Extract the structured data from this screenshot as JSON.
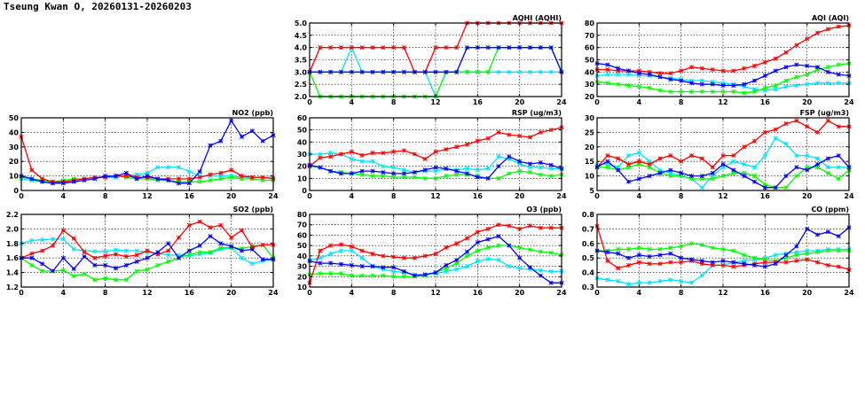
{
  "title": "Tseung Kwan O, 20260131-20260203",
  "series_colors": [
    "#ff0000",
    "#0000ff",
    "#00ff00",
    "#00e5ff"
  ],
  "chart_data": [
    {
      "id": "aqhi",
      "type": "line",
      "title": "AQHI (AQHI)",
      "xlim": [
        0,
        24
      ],
      "xticks": [
        0,
        4,
        8,
        12,
        16,
        20,
        24
      ],
      "ylim": [
        2,
        5
      ],
      "yticks": [
        "2.0",
        "2.5",
        "3.0",
        "3.5",
        "4.0",
        "4.5",
        "5.0"
      ],
      "grid": true,
      "series": [
        {
          "color": "#00e5ff",
          "values": [
            3,
            3,
            3,
            3,
            4,
            3,
            3,
            3,
            3,
            3,
            3,
            3,
            2,
            3,
            3,
            3,
            3,
            3,
            3,
            3,
            3,
            3,
            3,
            3,
            3
          ]
        },
        {
          "color": "#00ff00",
          "values": [
            3,
            2,
            2,
            2,
            2,
            2,
            2,
            2,
            2,
            2,
            2,
            2,
            2,
            3,
            3,
            3,
            3,
            3,
            4,
            4,
            4,
            4,
            4,
            4,
            3
          ]
        },
        {
          "color": "#ff0000",
          "values": [
            3,
            4,
            4,
            4,
            4,
            4,
            4,
            4,
            4,
            4,
            3,
            3,
            4,
            4,
            4,
            5,
            5,
            5,
            5,
            5,
            5,
            5,
            5,
            5,
            5
          ]
        },
        {
          "color": "#0000ff",
          "values": [
            3,
            3,
            3,
            3,
            3,
            3,
            3,
            3,
            3,
            3,
            3,
            3,
            3,
            3,
            3,
            4,
            4,
            4,
            4,
            4,
            4,
            4,
            4,
            4,
            3
          ]
        }
      ]
    },
    {
      "id": "aqi",
      "type": "line",
      "title": "AQI (AQI)",
      "xlim": [
        0,
        24
      ],
      "xticks": [
        0,
        4,
        8,
        12,
        16,
        20,
        24
      ],
      "ylim": [
        20,
        80
      ],
      "yticks": [
        "20",
        "30",
        "40",
        "50",
        "60",
        "70",
        "80"
      ],
      "grid": true,
      "series": [
        {
          "color": "#00e5ff",
          "values": [
            37,
            38,
            38,
            38,
            37,
            37,
            36,
            35,
            34,
            33,
            33,
            32,
            31,
            30,
            28,
            26,
            25,
            26,
            28,
            29,
            30,
            31,
            31,
            31,
            31
          ]
        },
        {
          "color": "#00ff00",
          "values": [
            32,
            31,
            30,
            29,
            28,
            27,
            25,
            24,
            24,
            24,
            24,
            24,
            24,
            24,
            23,
            24,
            27,
            29,
            33,
            36,
            38,
            42,
            44,
            46,
            47
          ]
        },
        {
          "color": "#ff0000",
          "values": [
            42,
            42,
            41,
            41,
            41,
            40,
            39,
            39,
            41,
            44,
            43,
            42,
            41,
            41,
            43,
            45,
            48,
            51,
            56,
            62,
            67,
            72,
            75,
            77,
            78
          ]
        },
        {
          "color": "#0000ff",
          "values": [
            47,
            46,
            43,
            41,
            39,
            38,
            36,
            34,
            33,
            31,
            30,
            30,
            29,
            29,
            30,
            33,
            37,
            41,
            44,
            46,
            45,
            44,
            40,
            38,
            37
          ]
        }
      ]
    },
    {
      "id": "no2",
      "type": "line",
      "title": "NO2 (ppb)",
      "xlim": [
        0,
        24
      ],
      "xticks": [
        0,
        4,
        8,
        12,
        16,
        20,
        24
      ],
      "ylim": [
        0,
        50
      ],
      "yticks": [
        "0",
        "10",
        "20",
        "30",
        "40",
        "50"
      ],
      "grid": true,
      "series": [
        {
          "color": "#00e5ff",
          "values": [
            8,
            7,
            6,
            5,
            6,
            7,
            8,
            9,
            9,
            9,
            10,
            11,
            12,
            16,
            16,
            16,
            13,
            10,
            10,
            10,
            10,
            9,
            9,
            9,
            9
          ]
        },
        {
          "color": "#00ff00",
          "values": [
            9,
            8,
            7,
            6,
            7,
            8,
            8,
            9,
            9,
            10,
            9,
            8,
            8,
            7,
            7,
            6,
            6,
            6,
            7,
            8,
            9,
            8,
            8,
            7,
            7
          ]
        },
        {
          "color": "#ff0000",
          "values": [
            37,
            14,
            8,
            6,
            6,
            7,
            8,
            9,
            9,
            10,
            10,
            9,
            9,
            8,
            8,
            8,
            8,
            9,
            11,
            12,
            14,
            10,
            9,
            9,
            8
          ]
        },
        {
          "color": "#0000ff",
          "values": [
            10,
            8,
            6,
            5,
            5,
            6,
            7,
            8,
            10,
            10,
            12,
            8,
            10,
            8,
            7,
            5,
            5,
            13,
            31,
            34,
            48,
            37,
            41,
            34,
            38
          ]
        }
      ]
    },
    {
      "id": "rsp",
      "type": "line",
      "title": "RSP (ug/m3)",
      "xlim": [
        0,
        24
      ],
      "xticks": [
        0,
        4,
        8,
        12,
        16,
        20,
        24
      ],
      "ylim": [
        0,
        60
      ],
      "yticks": [
        "0",
        "10",
        "20",
        "30",
        "40",
        "50",
        "60"
      ],
      "grid": true,
      "series": [
        {
          "color": "#00e5ff",
          "values": [
            30,
            30,
            31,
            30,
            26,
            24,
            24,
            20,
            19,
            17,
            15,
            16,
            16,
            18,
            17,
            18,
            17,
            18,
            28,
            26,
            22,
            19,
            19,
            18,
            18
          ]
        },
        {
          "color": "#00ff00",
          "values": [
            20,
            19,
            16,
            15,
            14,
            13,
            12,
            12,
            11,
            11,
            11,
            10,
            10,
            12,
            13,
            13,
            12,
            10,
            10,
            14,
            16,
            15,
            13,
            12,
            13
          ]
        },
        {
          "color": "#ff0000",
          "values": [
            20,
            27,
            28,
            30,
            32,
            29,
            31,
            31,
            32,
            33,
            30,
            26,
            32,
            34,
            36,
            38,
            41,
            43,
            48,
            46,
            45,
            44,
            48,
            50,
            52
          ]
        },
        {
          "color": "#0000ff",
          "values": [
            21,
            19,
            16,
            14,
            14,
            16,
            16,
            15,
            14,
            14,
            15,
            17,
            19,
            18,
            16,
            14,
            11,
            10,
            20,
            28,
            24,
            22,
            23,
            21,
            18
          ]
        }
      ]
    },
    {
      "id": "fsp",
      "type": "line",
      "title": "FSP (ug/m3)",
      "xlim": [
        0,
        24
      ],
      "xticks": [
        0,
        4,
        8,
        12,
        16,
        20,
        24
      ],
      "ylim": [
        5,
        30
      ],
      "yticks": [
        "5",
        "10",
        "15",
        "20",
        "25",
        "30"
      ],
      "grid": true,
      "series": [
        {
          "color": "#00e5ff",
          "values": [
            14,
            14,
            13,
            17,
            18,
            15,
            12,
            11,
            10,
            9,
            6,
            10,
            13,
            15,
            14,
            13,
            17,
            23,
            21,
            17,
            17,
            16,
            13,
            13,
            13
          ]
        },
        {
          "color": "#00ff00",
          "values": [
            13,
            13,
            12,
            13,
            14,
            13,
            11,
            10,
            10,
            9,
            9,
            9,
            10,
            11,
            11,
            10,
            7,
            6,
            6,
            10,
            13,
            13,
            11,
            9,
            12
          ]
        },
        {
          "color": "#ff0000",
          "values": [
            13,
            17,
            16,
            14,
            15,
            14,
            16,
            17,
            15,
            17,
            16,
            13,
            17,
            17,
            20,
            22,
            25,
            26,
            28,
            29,
            27,
            25,
            29,
            27,
            27
          ]
        },
        {
          "color": "#0000ff",
          "values": [
            13,
            15,
            12,
            8,
            9,
            10,
            11,
            12,
            11,
            10,
            10,
            11,
            14,
            12,
            10,
            8,
            6,
            6,
            10,
            13,
            12,
            14,
            16,
            17,
            13
          ]
        }
      ]
    },
    {
      "id": "so2",
      "type": "line",
      "title": "SO2 (ppb)",
      "xlim": [
        0,
        24
      ],
      "xticks": [
        0,
        4,
        8,
        12,
        16,
        20,
        24
      ],
      "ylim": [
        1.2,
        2.2
      ],
      "yticks": [
        "1.2",
        "1.4",
        "1.6",
        "1.8",
        "2.0",
        "2.2"
      ],
      "grid": true,
      "series": [
        {
          "color": "#00e5ff",
          "values": [
            1.8,
            1.84,
            1.85,
            1.86,
            1.86,
            1.72,
            1.7,
            1.69,
            1.69,
            1.71,
            1.7,
            1.7,
            1.68,
            1.66,
            1.64,
            1.64,
            1.63,
            1.65,
            1.67,
            1.72,
            1.74,
            1.6,
            1.52,
            1.56,
            1.58
          ]
        },
        {
          "color": "#00ff00",
          "values": [
            1.6,
            1.5,
            1.42,
            1.42,
            1.43,
            1.35,
            1.38,
            1.3,
            1.32,
            1.3,
            1.3,
            1.42,
            1.44,
            1.5,
            1.55,
            1.6,
            1.65,
            1.68,
            1.68,
            1.74,
            1.74,
            1.73,
            1.76,
            1.78,
            1.6
          ]
        },
        {
          "color": "#ff0000",
          "values": [
            1.6,
            1.66,
            1.7,
            1.77,
            1.98,
            1.87,
            1.68,
            1.6,
            1.63,
            1.65,
            1.62,
            1.64,
            1.7,
            1.65,
            1.7,
            1.88,
            2.05,
            2.1,
            2.02,
            2.05,
            1.88,
            1.98,
            1.75,
            1.78,
            1.78
          ]
        },
        {
          "color": "#0000ff",
          "values": [
            1.6,
            1.6,
            1.52,
            1.42,
            1.6,
            1.45,
            1.62,
            1.5,
            1.5,
            1.46,
            1.5,
            1.55,
            1.6,
            1.68,
            1.8,
            1.6,
            1.7,
            1.77,
            1.9,
            1.8,
            1.76,
            1.7,
            1.72,
            1.58,
            1.58
          ]
        }
      ]
    },
    {
      "id": "o3",
      "type": "line",
      "title": "O3 (ppb)",
      "xlim": [
        0,
        24
      ],
      "xticks": [
        0,
        4,
        8,
        12,
        16,
        20,
        24
      ],
      "ylim": [
        10,
        80
      ],
      "yticks": [
        "10",
        "20",
        "30",
        "40",
        "50",
        "60",
        "70",
        "80"
      ],
      "grid": true,
      "series": [
        {
          "color": "#00e5ff",
          "values": [
            36,
            38,
            42,
            45,
            45,
            38,
            30,
            27,
            25,
            24,
            22,
            22,
            23,
            25,
            27,
            30,
            35,
            37,
            36,
            30,
            28,
            27,
            26,
            25,
            25
          ]
        },
        {
          "color": "#00ff00",
          "values": [
            22,
            23,
            23,
            23,
            21,
            21,
            21,
            21,
            20,
            20,
            20,
            21,
            24,
            28,
            33,
            40,
            45,
            48,
            50,
            50,
            48,
            46,
            44,
            43,
            41
          ]
        },
        {
          "color": "#ff0000",
          "values": [
            14,
            45,
            50,
            51,
            49,
            45,
            42,
            40,
            39,
            38,
            38,
            40,
            42,
            48,
            52,
            57,
            63,
            66,
            70,
            69,
            66,
            69,
            67,
            67,
            67
          ]
        },
        {
          "color": "#0000ff",
          "values": [
            35,
            33,
            33,
            32,
            31,
            30,
            30,
            29,
            29,
            25,
            21,
            22,
            24,
            31,
            36,
            44,
            53,
            56,
            59,
            50,
            38,
            29,
            21,
            14,
            14
          ]
        }
      ]
    },
    {
      "id": "co",
      "type": "line",
      "title": "CO (ppm)",
      "xlim": [
        0,
        24
      ],
      "xticks": [
        0,
        4,
        8,
        12,
        16,
        20,
        24
      ],
      "ylim": [
        0.3,
        0.8
      ],
      "yticks": [
        "0.3",
        "0.4",
        "0.5",
        "0.6",
        "0.7",
        "0.8"
      ],
      "grid": true,
      "series": [
        {
          "color": "#00e5ff",
          "values": [
            0.36,
            0.35,
            0.34,
            0.32,
            0.33,
            0.33,
            0.34,
            0.35,
            0.34,
            0.33,
            0.38,
            0.45,
            0.45,
            0.47,
            0.48,
            0.49,
            0.5,
            0.52,
            0.53,
            0.54,
            0.55,
            0.55,
            0.56,
            0.56,
            0.56
          ]
        },
        {
          "color": "#00ff00",
          "values": [
            0.55,
            0.55,
            0.56,
            0.56,
            0.57,
            0.56,
            0.56,
            0.57,
            0.58,
            0.6,
            0.59,
            0.57,
            0.56,
            0.55,
            0.52,
            0.5,
            0.49,
            0.48,
            0.5,
            0.52,
            0.53,
            0.54,
            0.55,
            0.55,
            0.55
          ]
        },
        {
          "color": "#ff0000",
          "values": [
            0.72,
            0.48,
            0.43,
            0.45,
            0.47,
            0.46,
            0.46,
            0.47,
            0.47,
            0.48,
            0.46,
            0.45,
            0.45,
            0.44,
            0.45,
            0.46,
            0.47,
            0.47,
            0.47,
            0.48,
            0.49,
            0.47,
            0.45,
            0.44,
            0.42
          ]
        },
        {
          "color": "#0000ff",
          "values": [
            0.55,
            0.54,
            0.53,
            0.5,
            0.52,
            0.51,
            0.52,
            0.53,
            0.5,
            0.49,
            0.48,
            0.47,
            0.48,
            0.47,
            0.46,
            0.45,
            0.44,
            0.46,
            0.52,
            0.58,
            0.7,
            0.66,
            0.68,
            0.65,
            0.71
          ]
        }
      ]
    }
  ]
}
